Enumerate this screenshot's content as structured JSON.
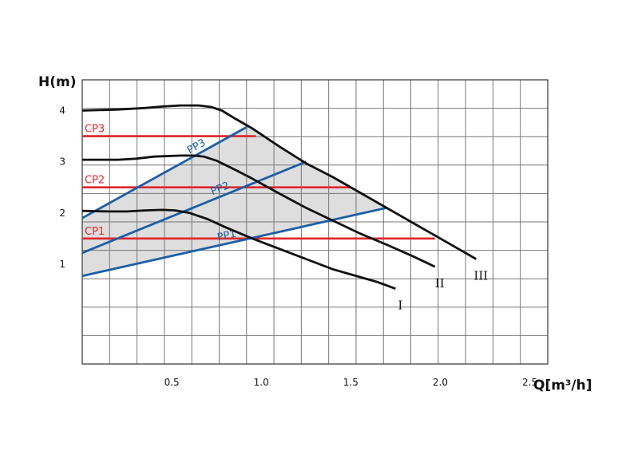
{
  "chart_data": {
    "type": "line",
    "y_axis_label": "H(m)",
    "x_axis_label": "Q[m³/h]",
    "x_ticks": [
      "0.5",
      "1.0",
      "1.5",
      "2.0",
      "2.5"
    ],
    "y_ticks": [
      "1",
      "2",
      "3",
      "4"
    ],
    "xlim": [
      0,
      2.6
    ],
    "ylim": [
      -0.95,
      4.6
    ],
    "grid": true,
    "pump_curves": [
      {
        "name": "III",
        "color": "#111111",
        "points": [
          [
            0.0,
            4.0
          ],
          [
            0.2,
            4.02
          ],
          [
            0.35,
            4.05
          ],
          [
            0.45,
            4.08
          ],
          [
            0.55,
            4.1
          ],
          [
            0.65,
            4.1
          ],
          [
            0.72,
            4.07
          ],
          [
            0.78,
            4.0
          ],
          [
            0.85,
            3.85
          ],
          [
            0.95,
            3.65
          ],
          [
            1.1,
            3.3
          ],
          [
            1.25,
            2.97
          ],
          [
            1.4,
            2.7
          ],
          [
            1.55,
            2.4
          ],
          [
            1.7,
            2.1
          ],
          [
            1.85,
            1.8
          ],
          [
            2.0,
            1.5
          ],
          [
            2.1,
            1.3
          ],
          [
            2.2,
            1.1
          ]
        ]
      },
      {
        "name": "II",
        "color": "#111111",
        "points": [
          [
            0.0,
            3.04
          ],
          [
            0.2,
            3.04
          ],
          [
            0.3,
            3.06
          ],
          [
            0.4,
            3.1
          ],
          [
            0.55,
            3.12
          ],
          [
            0.62,
            3.12
          ],
          [
            0.68,
            3.1
          ],
          [
            0.75,
            3.02
          ],
          [
            0.85,
            2.85
          ],
          [
            0.95,
            2.67
          ],
          [
            1.1,
            2.38
          ],
          [
            1.25,
            2.1
          ],
          [
            1.4,
            1.85
          ],
          [
            1.55,
            1.6
          ],
          [
            1.7,
            1.38
          ],
          [
            1.85,
            1.15
          ],
          [
            1.97,
            0.95
          ]
        ]
      },
      {
        "name": "I",
        "color": "#111111",
        "points": [
          [
            0.0,
            2.04
          ],
          [
            0.15,
            2.03
          ],
          [
            0.25,
            2.03
          ],
          [
            0.35,
            2.05
          ],
          [
            0.45,
            2.06
          ],
          [
            0.52,
            2.05
          ],
          [
            0.6,
            2.0
          ],
          [
            0.7,
            1.88
          ],
          [
            0.8,
            1.72
          ],
          [
            0.95,
            1.5
          ],
          [
            1.1,
            1.3
          ],
          [
            1.25,
            1.1
          ],
          [
            1.4,
            0.9
          ],
          [
            1.55,
            0.75
          ],
          [
            1.65,
            0.65
          ],
          [
            1.75,
            0.52
          ]
        ]
      }
    ],
    "pp_lines": [
      {
        "name": "PP3",
        "color": "#1b5ea8",
        "points": [
          [
            0.0,
            1.9
          ],
          [
            0.92,
            3.68
          ]
        ]
      },
      {
        "name": "PP2",
        "color": "#1b5ea8",
        "points": [
          [
            0.0,
            1.22
          ],
          [
            1.25,
            3.0
          ]
        ]
      },
      {
        "name": "PP1",
        "color": "#1b5ea8",
        "points": [
          [
            0.0,
            0.77
          ],
          [
            1.7,
            2.1
          ]
        ]
      }
    ],
    "cp_lines": [
      {
        "name": "CP3",
        "color": "#e0262b",
        "y": 3.5,
        "x_end": 0.97
      },
      {
        "name": "CP2",
        "color": "#e0262b",
        "y": 2.5,
        "x_end": 1.5
      },
      {
        "name": "CP1",
        "color": "#e0262b",
        "y": 1.5,
        "x_end": 1.97
      }
    ],
    "shaded_region_color": "#dedede",
    "curve_labels": [
      "III",
      "II",
      "I"
    ]
  }
}
